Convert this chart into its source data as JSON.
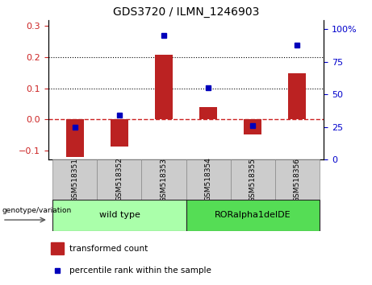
{
  "title": "GDS3720 / ILMN_1246903",
  "samples": [
    "GSM518351",
    "GSM518352",
    "GSM518353",
    "GSM518354",
    "GSM518355",
    "GSM518356"
  ],
  "bar_values": [
    -0.122,
    -0.088,
    0.207,
    0.038,
    -0.05,
    0.148
  ],
  "percentile_values": [
    25,
    34,
    95,
    55,
    26,
    88
  ],
  "bar_color": "#bb2222",
  "scatter_color": "#0000bb",
  "left_ylim": [
    -0.13,
    0.32
  ],
  "right_ylim": [
    0,
    107
  ],
  "left_yticks": [
    -0.1,
    0.0,
    0.1,
    0.2,
    0.3
  ],
  "right_yticks": [
    0,
    25,
    50,
    75,
    100
  ],
  "right_yticklabels": [
    "0",
    "25",
    "50",
    "75",
    "100%"
  ],
  "groups": [
    {
      "label": "wild type",
      "indices": [
        0,
        1,
        2
      ],
      "color": "#aaffaa"
    },
    {
      "label": "RORalpha1delDE",
      "indices": [
        3,
        4,
        5
      ],
      "color": "#55dd55"
    }
  ],
  "genotype_label": "genotype/variation",
  "legend_bar_label": "transformed count",
  "legend_scatter_label": "percentile rank within the sample",
  "hline_color": "#cc2222",
  "dotted_line_color": "#000000",
  "tick_label_color_left": "#cc2222",
  "tick_label_color_right": "#0000cc",
  "bar_width": 0.4,
  "figsize": [
    4.61,
    3.54
  ],
  "dpi": 100
}
